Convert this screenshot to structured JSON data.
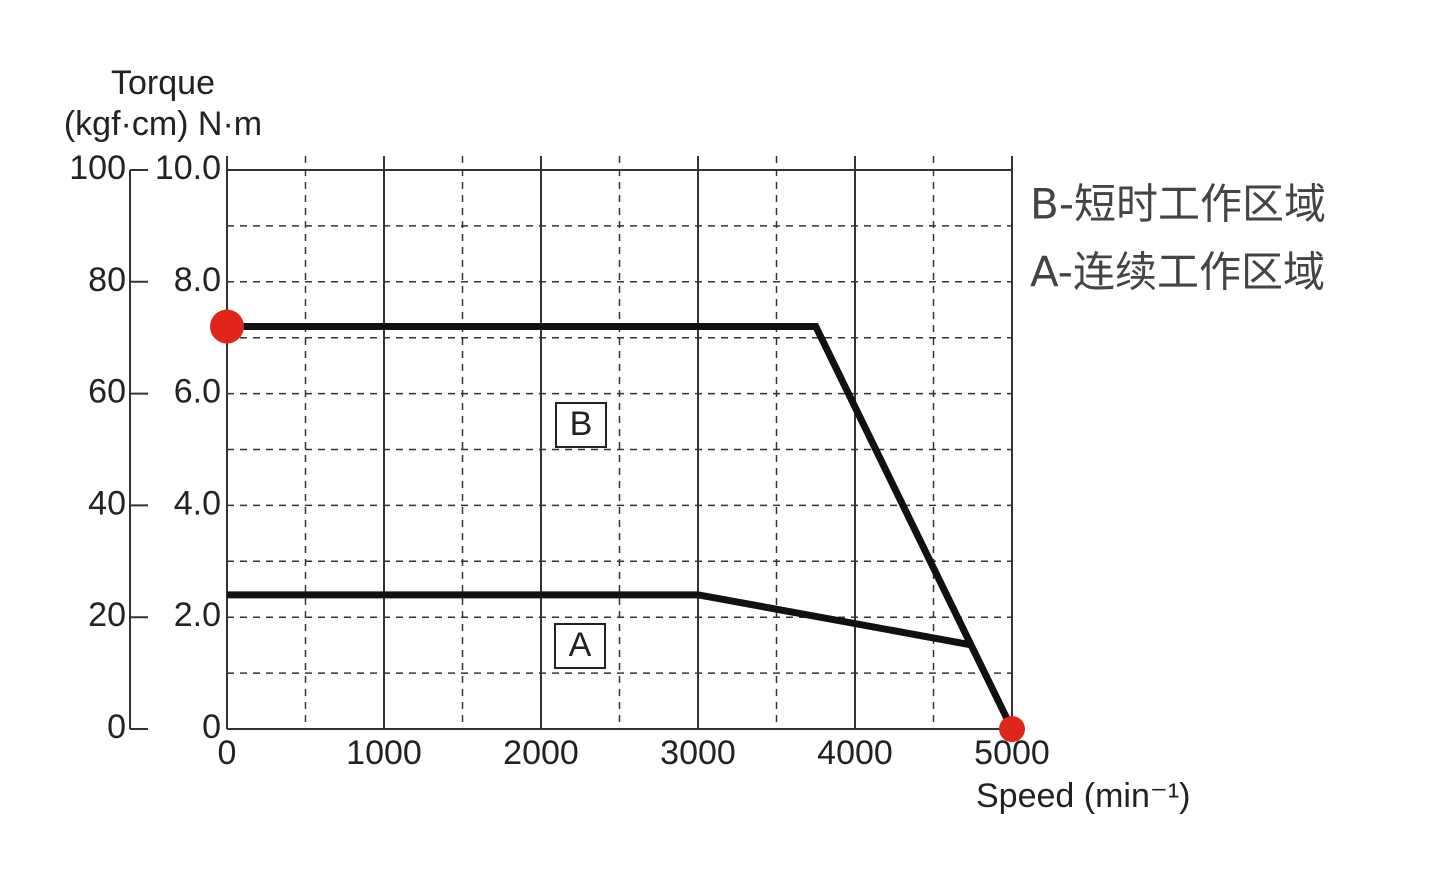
{
  "chart_data": {
    "type": "line",
    "y_label": "Torque",
    "y_unit_label": "(kgf·cm) N·m",
    "x_label": "Speed (min⁻¹)",
    "annotations": [
      "B",
      "A"
    ],
    "legend_texts": [
      "B-短时工作区域",
      "A-连续工作区域"
    ],
    "series": [
      {
        "name": "B",
        "color": "#111111",
        "x": [
          0,
          3750,
          5000
        ],
        "values": [
          7.2,
          7.2,
          0
        ]
      },
      {
        "name": "A",
        "color": "#111111",
        "x": [
          0,
          3000,
          4750
        ],
        "values": [
          2.4,
          2.4,
          1.5
        ]
      }
    ],
    "endpoint_marker_series": 0,
    "marker_color": "#e0261b",
    "xlim": [
      0,
      5000
    ],
    "xticks": [
      0,
      1000,
      2000,
      3000,
      4000,
      5000
    ],
    "minor_xticks": [
      500,
      1500,
      2500,
      3500,
      4500
    ],
    "ylim": [
      0,
      10
    ],
    "yticks": [
      0,
      {
        "value": 2,
        "label": "2.0"
      },
      {
        "value": 4,
        "label": "4.0"
      },
      {
        "value": 6,
        "label": "6.0"
      },
      {
        "value": 8,
        "label": "8.0"
      },
      {
        "value": 10,
        "label": "10.0"
      }
    ],
    "minor_yticks": [
      1,
      3,
      5,
      7,
      9
    ],
    "y2lim": [
      0,
      100
    ],
    "y2ticks": [
      0,
      20,
      40,
      60,
      80,
      100
    ],
    "grid": true
  }
}
